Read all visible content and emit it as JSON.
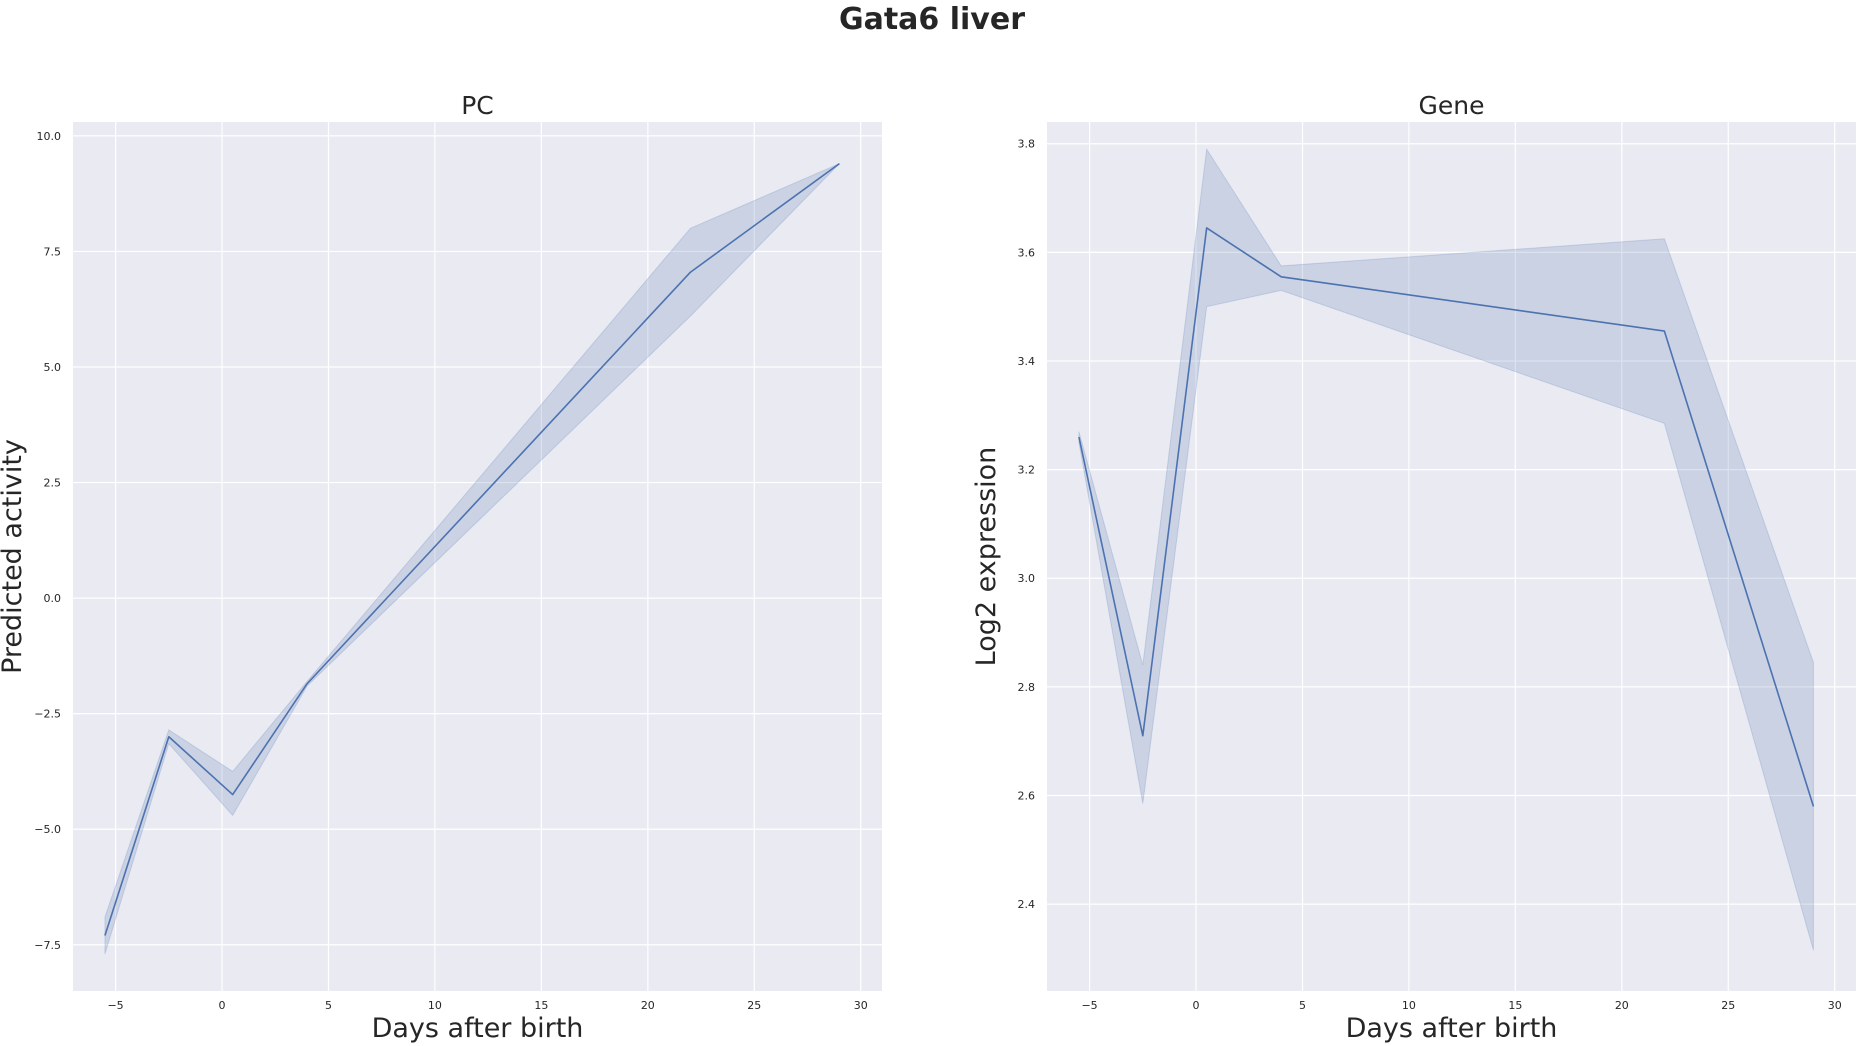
{
  "figure": {
    "title": "Gata6 liver"
  },
  "colors": {
    "line": "#4c72b0",
    "band": "#4c72b0",
    "background": "#eaeaf2",
    "grid": "#ffffff"
  },
  "chart_data": [
    {
      "type": "line",
      "title": "PC",
      "xlabel": "Days after birth",
      "ylabel": "Predicted activity",
      "xlim": [
        -7,
        31
      ],
      "ylim": [
        -8.5,
        10.3
      ],
      "xticks": [
        -5,
        0,
        5,
        10,
        15,
        20,
        25,
        30
      ],
      "xtick_labels": [
        "−5",
        "0",
        "5",
        "10",
        "15",
        "20",
        "25",
        "30"
      ],
      "yticks": [
        -7.5,
        -5.0,
        -2.5,
        0.0,
        2.5,
        5.0,
        7.5,
        10.0
      ],
      "ytick_labels": [
        "−7.5",
        "−5.0",
        "−2.5",
        "0.0",
        "2.5",
        "5.0",
        "7.5",
        "10.0"
      ],
      "grid": true,
      "x": [
        -5.5,
        -2.5,
        0.5,
        4,
        22,
        29
      ],
      "y": [
        -7.3,
        -3.0,
        -4.25,
        -1.85,
        7.05,
        9.4
      ],
      "ci_low": [
        -7.7,
        -3.15,
        -4.7,
        -1.9,
        6.1,
        9.4
      ],
      "ci_high": [
        -6.9,
        -2.85,
        -3.75,
        -1.8,
        8.0,
        9.4
      ]
    },
    {
      "type": "line",
      "title": "Gene",
      "xlabel": "Days after birth",
      "ylabel": "Log2 expression",
      "xlim": [
        -7,
        31
      ],
      "ylim": [
        2.24,
        3.84
      ],
      "xticks": [
        -5,
        0,
        5,
        10,
        15,
        20,
        25,
        30
      ],
      "xtick_labels": [
        "−5",
        "0",
        "5",
        "10",
        "15",
        "20",
        "25",
        "30"
      ],
      "yticks": [
        2.4,
        2.6,
        2.8,
        3.0,
        3.2,
        3.4,
        3.6,
        3.8
      ],
      "ytick_labels": [
        "2.4",
        "2.6",
        "2.8",
        "3.0",
        "3.2",
        "3.4",
        "3.6",
        "3.8"
      ],
      "grid": true,
      "x": [
        -5.5,
        -2.5,
        0.5,
        4,
        22,
        29
      ],
      "y": [
        3.26,
        2.71,
        3.645,
        3.555,
        3.455,
        2.58
      ],
      "ci_low": [
        3.25,
        2.585,
        3.5,
        3.53,
        3.285,
        2.315
      ],
      "ci_high": [
        3.27,
        2.84,
        3.79,
        3.575,
        3.625,
        2.845
      ]
    }
  ]
}
